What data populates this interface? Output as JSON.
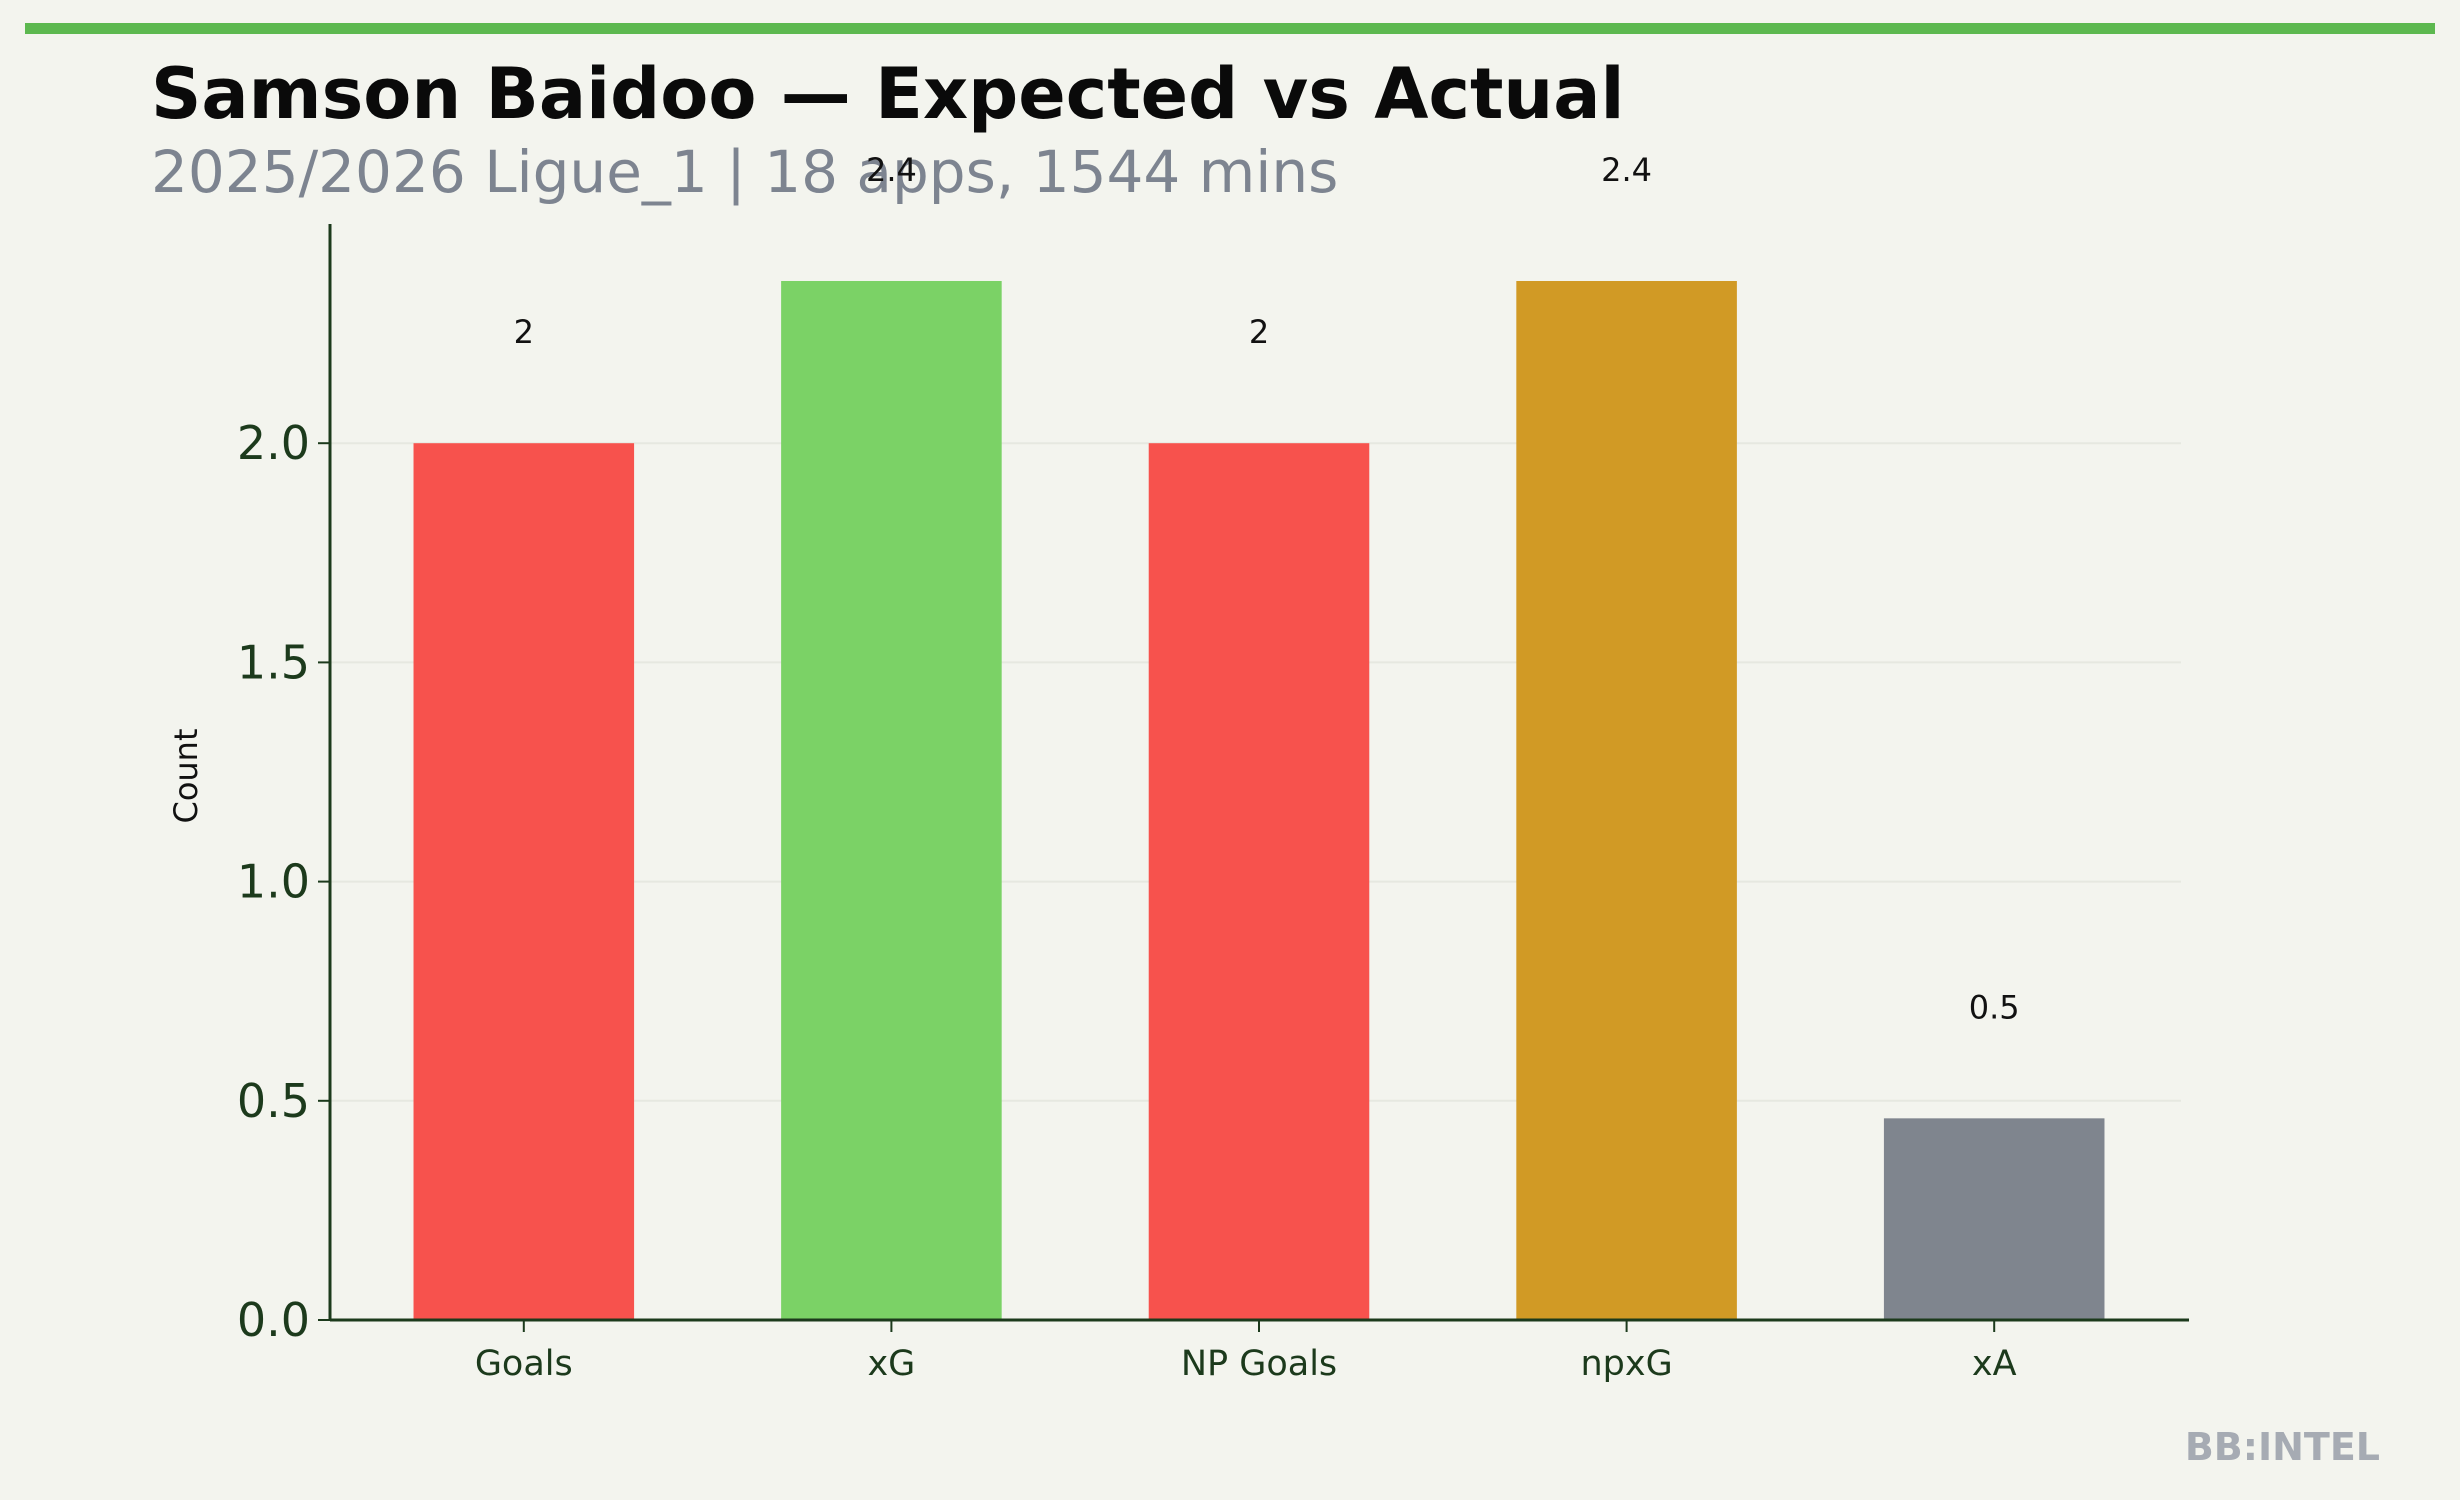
{
  "chart_data": {
    "type": "bar",
    "title": "Samson Baidoo — Expected vs Actual",
    "subtitle": "2025/2026 Ligue_1 | 18 apps, 1544 mins",
    "y_label": "Count",
    "categories": [
      "Goals",
      "xG",
      "NP Goals",
      "npxG",
      "xA"
    ],
    "values": [
      2,
      2.37,
      2,
      2.37,
      0.46
    ],
    "value_labels": [
      "2",
      "2.4",
      "2",
      "2.4",
      "0.5"
    ],
    "colors": [
      "#f7524d",
      "#7bd266",
      "#f7524d",
      "#d19a25",
      "#7f858e"
    ],
    "ylim": [
      0,
      2.5
    ],
    "yticks": [
      {
        "value": 0,
        "label": "0.0"
      },
      0.5,
      {
        "value": 1,
        "label": "1.0"
      },
      1.5,
      {
        "value": 2,
        "label": "2.0"
      }
    ],
    "grid": true,
    "watermark": "BB:INTEL"
  }
}
